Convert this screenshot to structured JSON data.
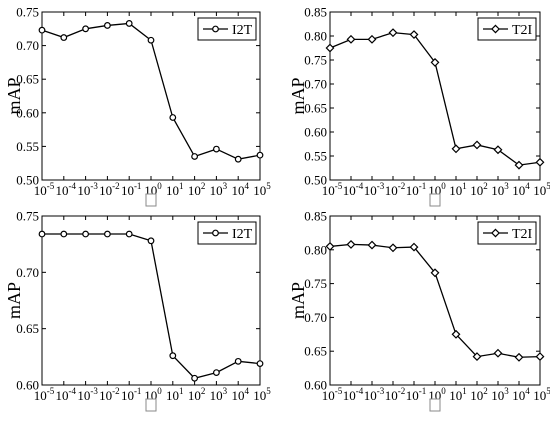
{
  "chart_data": [
    {
      "type": "line",
      "ylabel": "mAP",
      "xlabel": "□",
      "x_tick_labels": [
        {
          "base": "10",
          "exp": "-5"
        },
        {
          "base": "10",
          "exp": "-4"
        },
        {
          "base": "10",
          "exp": "-3"
        },
        {
          "base": "10",
          "exp": "-2"
        },
        {
          "base": "10",
          "exp": "-1"
        },
        {
          "base": "10",
          "exp": "0"
        },
        {
          "base": "10",
          "exp": "1"
        },
        {
          "base": "10",
          "exp": "2"
        },
        {
          "base": "10",
          "exp": "3"
        },
        {
          "base": "10",
          "exp": "4"
        },
        {
          "base": "10",
          "exp": "5"
        }
      ],
      "x": [
        -5,
        -4,
        -3,
        -2,
        -1,
        0,
        1,
        2,
        3,
        4,
        5
      ],
      "xlim": [
        -5,
        5
      ],
      "ylim": [
        0.5,
        0.75
      ],
      "yticks": [
        0.5,
        0.55,
        0.6,
        0.65,
        0.7,
        0.75
      ],
      "ytick_labels": [
        "0.50",
        "0.55",
        "0.60",
        "0.65",
        "0.70",
        "0.75"
      ],
      "grid": false,
      "legend_position": "top-right",
      "series": [
        {
          "name": "I2T",
          "marker": "circle",
          "color": "#000000",
          "values": [
            0.723,
            0.712,
            0.725,
            0.73,
            0.733,
            0.708,
            0.593,
            0.535,
            0.546,
            0.531,
            0.537
          ]
        }
      ]
    },
    {
      "type": "line",
      "ylabel": "mAP",
      "xlabel": "□",
      "x_tick_labels": [
        {
          "base": "10",
          "exp": "-5"
        },
        {
          "base": "10",
          "exp": "-4"
        },
        {
          "base": "10",
          "exp": "-3"
        },
        {
          "base": "10",
          "exp": "-2"
        },
        {
          "base": "10",
          "exp": "-1"
        },
        {
          "base": "10",
          "exp": "0"
        },
        {
          "base": "10",
          "exp": "1"
        },
        {
          "base": "10",
          "exp": "2"
        },
        {
          "base": "10",
          "exp": "3"
        },
        {
          "base": "10",
          "exp": "4"
        },
        {
          "base": "10",
          "exp": "5"
        }
      ],
      "x": [
        -5,
        -4,
        -3,
        -2,
        -1,
        0,
        1,
        2,
        3,
        4,
        5
      ],
      "xlim": [
        -5,
        5
      ],
      "ylim": [
        0.5,
        0.85
      ],
      "yticks": [
        0.5,
        0.55,
        0.6,
        0.65,
        0.7,
        0.75,
        0.8,
        0.85
      ],
      "ytick_labels": [
        "0.50",
        "0.55",
        "0.60",
        "0.65",
        "0.70",
        "0.75",
        "0.80",
        "0.85"
      ],
      "grid": false,
      "legend_position": "top-right",
      "series": [
        {
          "name": "T2I",
          "marker": "diamond",
          "color": "#000000",
          "values": [
            0.775,
            0.793,
            0.793,
            0.807,
            0.803,
            0.745,
            0.565,
            0.573,
            0.563,
            0.531,
            0.537
          ]
        }
      ]
    },
    {
      "type": "line",
      "ylabel": "mAP",
      "xlabel": "□",
      "x_tick_labels": [
        {
          "base": "10",
          "exp": "-5"
        },
        {
          "base": "10",
          "exp": "-4"
        },
        {
          "base": "10",
          "exp": "-3"
        },
        {
          "base": "10",
          "exp": "-2"
        },
        {
          "base": "10",
          "exp": "-1"
        },
        {
          "base": "10",
          "exp": "0"
        },
        {
          "base": "10",
          "exp": "1"
        },
        {
          "base": "10",
          "exp": "2"
        },
        {
          "base": "10",
          "exp": "3"
        },
        {
          "base": "10",
          "exp": "4"
        },
        {
          "base": "10",
          "exp": "5"
        }
      ],
      "x": [
        -5,
        -4,
        -3,
        -2,
        -1,
        0,
        1,
        2,
        3,
        4,
        5
      ],
      "xlim": [
        -5,
        5
      ],
      "ylim": [
        0.6,
        0.75
      ],
      "yticks": [
        0.6,
        0.65,
        0.7,
        0.75
      ],
      "ytick_labels": [
        "0.60",
        "0.65",
        "0.70",
        "0.75"
      ],
      "grid": false,
      "legend_position": "top-right",
      "series": [
        {
          "name": "I2T",
          "marker": "circle",
          "color": "#000000",
          "values": [
            0.734,
            0.734,
            0.734,
            0.734,
            0.734,
            0.728,
            0.626,
            0.606,
            0.611,
            0.621,
            0.619
          ]
        }
      ]
    },
    {
      "type": "line",
      "ylabel": "mAP",
      "xlabel": "□",
      "x_tick_labels": [
        {
          "base": "10",
          "exp": "-5"
        },
        {
          "base": "10",
          "exp": "-4"
        },
        {
          "base": "10",
          "exp": "-3"
        },
        {
          "base": "10",
          "exp": "-2"
        },
        {
          "base": "10",
          "exp": "-1"
        },
        {
          "base": "10",
          "exp": "0"
        },
        {
          "base": "10",
          "exp": "1"
        },
        {
          "base": "10",
          "exp": "2"
        },
        {
          "base": "10",
          "exp": "3"
        },
        {
          "base": "10",
          "exp": "4"
        },
        {
          "base": "10",
          "exp": "5"
        }
      ],
      "x": [
        -5,
        -4,
        -3,
        -2,
        -1,
        0,
        1,
        2,
        3,
        4,
        5
      ],
      "xlim": [
        -5,
        5
      ],
      "ylim": [
        0.6,
        0.85
      ],
      "yticks": [
        0.6,
        0.65,
        0.7,
        0.75,
        0.8,
        0.85
      ],
      "ytick_labels": [
        "0.60",
        "0.65",
        "0.70",
        "0.75",
        "0.80",
        "0.85"
      ],
      "grid": false,
      "legend_position": "top-right",
      "series": [
        {
          "name": "T2I",
          "marker": "diamond",
          "color": "#000000",
          "values": [
            0.805,
            0.808,
            0.807,
            0.803,
            0.804,
            0.766,
            0.675,
            0.642,
            0.647,
            0.641,
            0.642
          ]
        }
      ]
    }
  ]
}
